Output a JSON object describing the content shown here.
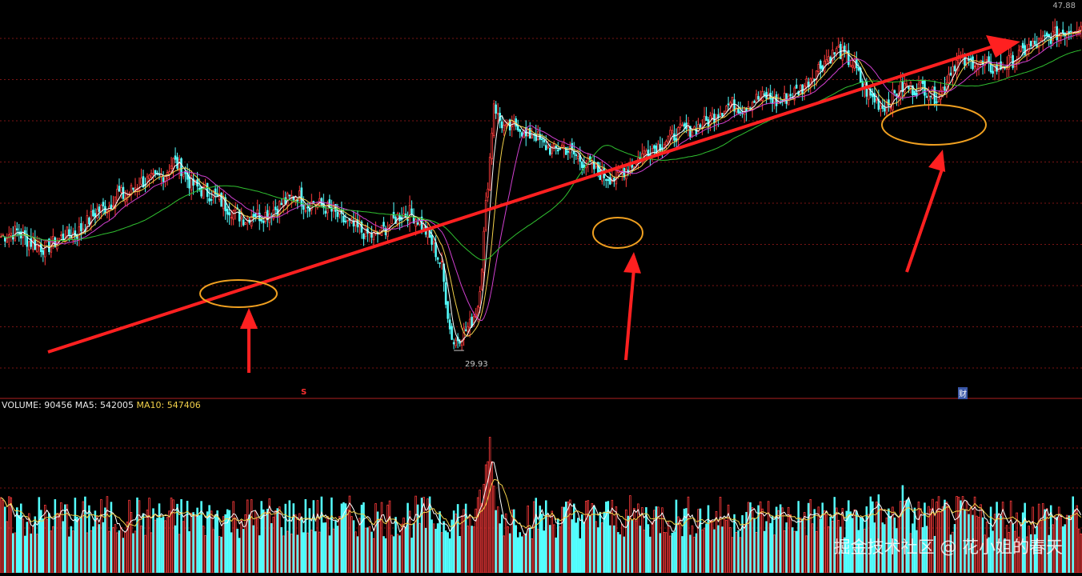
{
  "colors": {
    "background": "#000000",
    "up": "#ff3b3b",
    "down": "#54ffff",
    "ma5": "#ffffff",
    "ma10": "#f2d14a",
    "ma20": "#d040d0",
    "ma60": "#30c030",
    "grid": "#7a1414",
    "annotation": "#ff2020",
    "circle": "#f0a020"
  },
  "chart_data": [
    {
      "type": "candlestick",
      "panel": "price",
      "axis_labels": {
        "top_right_value": "47.88"
      },
      "low_marker": {
        "value": 29.93,
        "label": "29.93"
      },
      "event_markers": [
        {
          "label": "S",
          "color": "#ff3030"
        },
        {
          "label": "财",
          "color": "#ffffff"
        }
      ],
      "price_range": [
        27.5,
        49.5
      ],
      "series": [
        {
          "name": "close",
          "description_points": [
            [
              0,
              36.6
            ],
            [
              8,
              36.9
            ],
            [
              14,
              36.3
            ],
            [
              18,
              36.1
            ],
            [
              22,
              35.9
            ],
            [
              26,
              36.2
            ],
            [
              32,
              36.7
            ],
            [
              38,
              36.8
            ],
            [
              42,
              37.3
            ],
            [
              48,
              38.1
            ],
            [
              54,
              38.4
            ],
            [
              58,
              39.2
            ],
            [
              62,
              38.9
            ],
            [
              66,
              39.4
            ],
            [
              70,
              39.8
            ],
            [
              76,
              39.9
            ],
            [
              82,
              40.3
            ],
            [
              86,
              41.0
            ],
            [
              90,
              40.6
            ],
            [
              94,
              39.8
            ],
            [
              100,
              39.3
            ],
            [
              106,
              39.0
            ],
            [
              112,
              38.4
            ],
            [
              118,
              37.9
            ],
            [
              122,
              37.6
            ],
            [
              126,
              38.0
            ],
            [
              130,
              37.8
            ],
            [
              134,
              38.0
            ],
            [
              140,
              38.5
            ],
            [
              144,
              38.8
            ],
            [
              148,
              39.1
            ],
            [
              152,
              38.4
            ],
            [
              156,
              38.6
            ],
            [
              162,
              38.3
            ],
            [
              166,
              38.0
            ],
            [
              170,
              37.6
            ],
            [
              174,
              37.3
            ],
            [
              180,
              36.9
            ],
            [
              186,
              36.6
            ],
            [
              190,
              36.9
            ],
            [
              194,
              37.3
            ],
            [
              198,
              37.8
            ],
            [
              204,
              38.0
            ],
            [
              208,
              37.6
            ],
            [
              212,
              36.9
            ],
            [
              216,
              36.0
            ],
            [
              220,
              34.8
            ],
            [
              224,
              31.2
            ],
            [
              226,
              30.4
            ],
            [
              230,
              30.9
            ],
            [
              234,
              31.4
            ],
            [
              238,
              32.6
            ],
            [
              240,
              35.0
            ],
            [
              242,
              38.4
            ],
            [
              244,
              41.2
            ],
            [
              246,
              44.5
            ],
            [
              248,
              43.6
            ],
            [
              252,
              42.8
            ],
            [
              258,
              43.2
            ],
            [
              262,
              42.4
            ],
            [
              266,
              42.7
            ],
            [
              270,
              42.0
            ],
            [
              276,
              41.6
            ],
            [
              280,
              41.9
            ],
            [
              286,
              41.4
            ],
            [
              290,
              41.0
            ],
            [
              296,
              40.6
            ],
            [
              300,
              40.2
            ],
            [
              306,
              40.0
            ],
            [
              310,
              40.4
            ],
            [
              316,
              40.9
            ],
            [
              322,
              41.6
            ],
            [
              328,
              41.9
            ],
            [
              334,
              42.4
            ],
            [
              340,
              42.8
            ],
            [
              346,
              42.9
            ],
            [
              352,
              43.3
            ],
            [
              358,
              43.9
            ],
            [
              364,
              44.4
            ],
            [
              370,
              44.1
            ],
            [
              376,
              44.6
            ],
            [
              382,
              44.8
            ],
            [
              388,
              44.4
            ],
            [
              394,
              44.9
            ],
            [
              400,
              45.3
            ],
            [
              406,
              46.2
            ],
            [
              412,
              47.0
            ],
            [
              418,
              47.5
            ],
            [
              422,
              47.0
            ],
            [
              426,
              46.6
            ],
            [
              430,
              45.4
            ],
            [
              434,
              44.8
            ],
            [
              440,
              44.2
            ],
            [
              444,
              44.6
            ],
            [
              448,
              45.2
            ],
            [
              452,
              45.4
            ],
            [
              456,
              45.2
            ],
            [
              460,
              45.4
            ],
            [
              466,
              44.8
            ],
            [
              470,
              45.2
            ],
            [
              474,
              46.4
            ],
            [
              478,
              47.0
            ],
            [
              482,
              46.7
            ],
            [
              486,
              46.9
            ],
            [
              490,
              46.6
            ],
            [
              496,
              46.4
            ],
            [
              500,
              46.6
            ],
            [
              506,
              47.0
            ],
            [
              512,
              47.6
            ],
            [
              518,
              47.9
            ],
            [
              524,
              48.3
            ],
            [
              530,
              48.6
            ],
            [
              536,
              48.9
            ]
          ]
        },
        {
          "name": "MA5"
        },
        {
          "name": "MA10"
        },
        {
          "name": "MA20"
        },
        {
          "name": "MA60"
        }
      ]
    },
    {
      "type": "bar",
      "panel": "volume",
      "title": "VOLUME",
      "values_text": {
        "volume_label": "VOLUME: 90456",
        "ma5_label": "MA5: 542005",
        "ma10_label": "MA10: 547406"
      },
      "volume_range": [
        0,
        1400000
      ],
      "spikes": [
        {
          "bar": 244,
          "value": 1180000
        },
        {
          "bar": 242,
          "value": 940000
        },
        {
          "bar": 239,
          "value": 720000
        },
        {
          "bar": 438,
          "value": 680000
        },
        {
          "bar": 450,
          "value": 760000
        },
        {
          "bar": 482,
          "value": 620000
        }
      ],
      "baseline": 420000
    }
  ],
  "watermark": "掘金技术社区 @ 花小姐的春天"
}
